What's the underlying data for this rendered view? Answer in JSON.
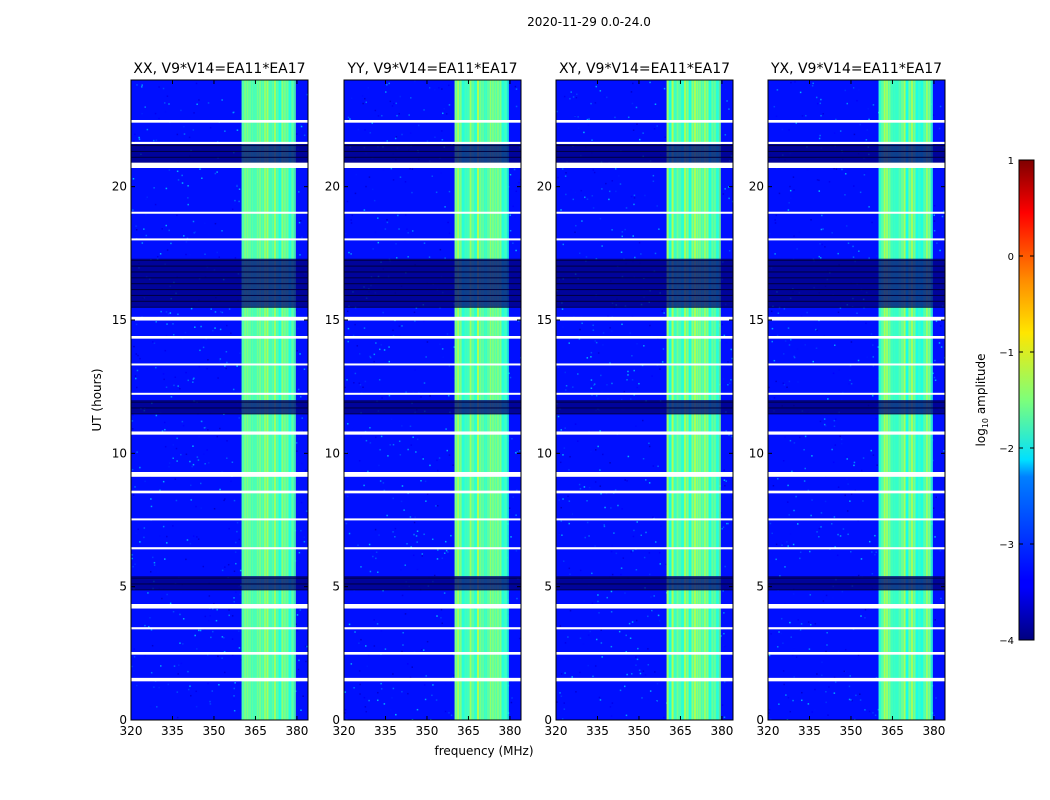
{
  "chart_data": {
    "type": "heatmap",
    "suptitle": "2020-11-29 0.0-24.0",
    "xlabel": "frequency (MHz)",
    "ylabel": "UT (hours)",
    "xlim": [
      320,
      384
    ],
    "ylim": [
      0,
      24
    ],
    "x_ticks": [
      320,
      335,
      350,
      365,
      380
    ],
    "y_ticks": [
      0,
      5,
      10,
      15,
      20
    ],
    "panels": [
      {
        "title": "XX, V9*V14=EA11*EA17",
        "polarization": "XX"
      },
      {
        "title": "YY, V9*V14=EA11*EA17",
        "polarization": "YY"
      },
      {
        "title": "XY, V9*V14=EA11*EA17",
        "polarization": "XY"
      },
      {
        "title": "YX, V9*V14=EA11*EA17",
        "polarization": "YX"
      }
    ],
    "colorbar": {
      "label_prefix": "log",
      "label_sub": "10",
      "label_suffix": " amplitude",
      "range": [
        -4,
        1
      ],
      "ticks": [
        {
          "value": 1,
          "label": "1"
        },
        {
          "value": 0,
          "label": "0"
        },
        {
          "value": -1,
          "label": "−1"
        },
        {
          "value": -2,
          "label": "−2"
        },
        {
          "value": -3,
          "label": "−3"
        },
        {
          "value": -4,
          "label": "−4"
        }
      ],
      "colormap": "jet"
    },
    "bright_band_mhz": [
      360,
      379
    ],
    "background_level": -3.3,
    "band_level": -1.6,
    "flagged_hours": [
      [
        1.45,
        1.58
      ],
      [
        2.45,
        2.55
      ],
      [
        3.4,
        3.48
      ],
      [
        4.18,
        4.35
      ],
      [
        6.4,
        6.48
      ],
      [
        7.5,
        7.56
      ],
      [
        8.5,
        8.6
      ],
      [
        9.12,
        9.3
      ],
      [
        10.7,
        10.82
      ],
      [
        12.2,
        12.27
      ],
      [
        13.3,
        13.37
      ],
      [
        14.3,
        14.4
      ],
      [
        14.98,
        15.12
      ],
      [
        18.0,
        18.06
      ],
      [
        19.0,
        19.06
      ],
      [
        20.7,
        20.9
      ],
      [
        21.6,
        21.68
      ],
      [
        22.4,
        22.5
      ]
    ],
    "low_signal_hours": [
      [
        4.9,
        5.4
      ],
      [
        11.5,
        12.0
      ],
      [
        15.5,
        17.3
      ],
      [
        20.9,
        21.6
      ]
    ]
  }
}
